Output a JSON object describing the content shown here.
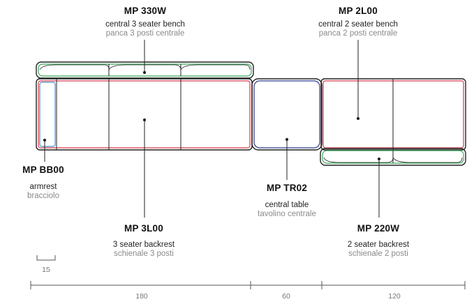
{
  "components": {
    "bench3": {
      "code": "MP 330W",
      "name_en": "central 3 seater bench",
      "name_it": "panca 3 posti centrale"
    },
    "bench2": {
      "code": "MP 2L00",
      "name_en": "central 2 seater bench",
      "name_it": "panca 2 posti centrale"
    },
    "armrest": {
      "code": "MP BB00",
      "name_en": "armrest",
      "name_it": "bracciolo"
    },
    "table": {
      "code": "MP TR02",
      "name_en": "central table",
      "name_it": "tavolino centrale"
    },
    "backrest3": {
      "code": "MP 3L00",
      "name_en": "3 seater backrest",
      "name_it": "schienale 3 posti"
    },
    "backrest2": {
      "code": "MP 220W",
      "name_en": "2 seater backrest",
      "name_it": "schienale 2 posti"
    }
  },
  "dimensions": {
    "scale": "15",
    "segments": [
      "180",
      "60",
      "120"
    ]
  },
  "colors": {
    "outline": "#222222",
    "green": "#3aa85a",
    "red": "#d23a4a",
    "blue": "#4a8fd0",
    "navy": "#2d3a8c",
    "leader": "#222222"
  }
}
